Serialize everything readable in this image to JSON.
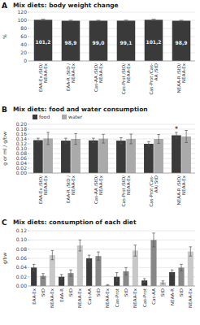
{
  "chart_data": [
    {
      "type": "bar",
      "title": "Mix diets: body weight change",
      "ylabel": "%",
      "categories": [
        "EAA-Ex /StD/\nNEAA-Ex",
        "EAA-R /StD /\nNEAA-Ex",
        "Cas-AA /StD/\nNEAA-Ex",
        "Cas-Prot /StD/\nNEAA-Ex",
        "Cas-Prot /Cas-\nAA /StD",
        "NEAA-R /StD/\nNEAA-Ex"
      ],
      "values": [
        101.2,
        98.9,
        99.0,
        99.1,
        101.2,
        98.9
      ],
      "value_labels": [
        "101,2",
        "98,9",
        "99,0",
        "99,1",
        "101,2",
        "98,9"
      ],
      "errors": [
        1.5,
        1.2,
        1.0,
        1.3,
        1.5,
        1.1
      ],
      "color": "#3a3a3a",
      "ylim": [
        0,
        120
      ],
      "yticks": [
        0,
        20,
        40,
        60,
        80,
        100,
        120
      ],
      "grid": true,
      "data_labels": true,
      "annotations": [
        {
          "text": "A"
        }
      ]
    },
    {
      "type": "bar",
      "title": "Mix diets: food and water consumption",
      "ylabel": "g or ml / g/bw",
      "categories": [
        "EAA-Ex /StD/\nNEAA-Ex",
        "EAA-R /StD /\nNEAA-Ex",
        "Cas-AA /StD/\nNEAA-Ex",
        "Cas-Prot /StD/\nNEAA-Ex",
        "Cas-Prot /Cas-\nAA/ StD",
        "NEAA-R /StD/\nNEAA-Ex"
      ],
      "series": [
        {
          "name": "food",
          "color": "#3a3a3a",
          "values": [
            0.135,
            0.133,
            0.134,
            0.133,
            0.12,
            0.155
          ],
          "errors": [
            0.008,
            0.01,
            0.009,
            0.012,
            0.009,
            0.012
          ]
        },
        {
          "name": "water",
          "color": "#aaaaaa",
          "values": [
            0.142,
            0.14,
            0.141,
            0.14,
            0.14,
            0.15
          ],
          "errors": [
            0.025,
            0.022,
            0.018,
            0.02,
            0.018,
            0.025
          ]
        }
      ],
      "ylim": [
        0,
        0.2
      ],
      "yticks": [
        {
          "value": 0,
          "label": "0.00"
        },
        0.02,
        0.04,
        0.06,
        0.08,
        {
          "value": 0.1,
          "label": "0.10"
        },
        0.12,
        0.14,
        0.16,
        0.18,
        {
          "value": 0.2,
          "label": "0.20"
        }
      ],
      "grid": true,
      "legend": "upper left",
      "annotations": [
        {
          "text": "B"
        },
        {
          "text": "*",
          "category": "NEAA-R /StD/\nNEAA-Ex",
          "series": "food"
        }
      ]
    },
    {
      "type": "bar",
      "title": "Mix diets: consumption of each diet",
      "ylabel": "g/bw",
      "categories": [
        "EAA-Ex",
        "StD",
        "NEAA-Ex",
        "EAA-R",
        "StD",
        "NEAA-Ex",
        "Cas-AA",
        "StD",
        "NEAA-Ex",
        "Cas-Prot",
        "StD",
        "NEAA-Ex",
        "Cas-Prot",
        "Cas-AA",
        "StD",
        "NEAA-R",
        "StD",
        "NEAA-Ex"
      ],
      "values": [
        0.04,
        0.022,
        0.067,
        0.02,
        0.028,
        0.088,
        0.06,
        0.065,
        0.002,
        0.02,
        0.032,
        0.077,
        0.012,
        0.1,
        0.008,
        0.03,
        0.04,
        0.075
      ],
      "errors": [
        0.007,
        0.005,
        0.01,
        0.005,
        0.007,
        0.012,
        0.007,
        0.009,
        0.001,
        0.009,
        0.008,
        0.012,
        0.004,
        0.015,
        0.003,
        0.005,
        0.007,
        0.01
      ],
      "colors": [
        "#3a3a3a",
        "#888888",
        "#c8c8c8",
        "#3a3a3a",
        "#888888",
        "#c8c8c8",
        "#3a3a3a",
        "#888888",
        "#c8c8c8",
        "#3a3a3a",
        "#888888",
        "#c8c8c8",
        "#3a3a3a",
        "#888888",
        "#c8c8c8",
        "#3a3a3a",
        "#888888",
        "#c8c8c8"
      ],
      "ylim": [
        0,
        0.12
      ],
      "yticks": [
        {
          "value": 0,
          "label": "0.00"
        },
        0.02,
        0.04,
        0.06,
        0.08,
        {
          "value": 0.1,
          "label": "0.10"
        },
        0.12
      ],
      "grid": true,
      "annotations": [
        {
          "text": "C"
        }
      ]
    }
  ]
}
